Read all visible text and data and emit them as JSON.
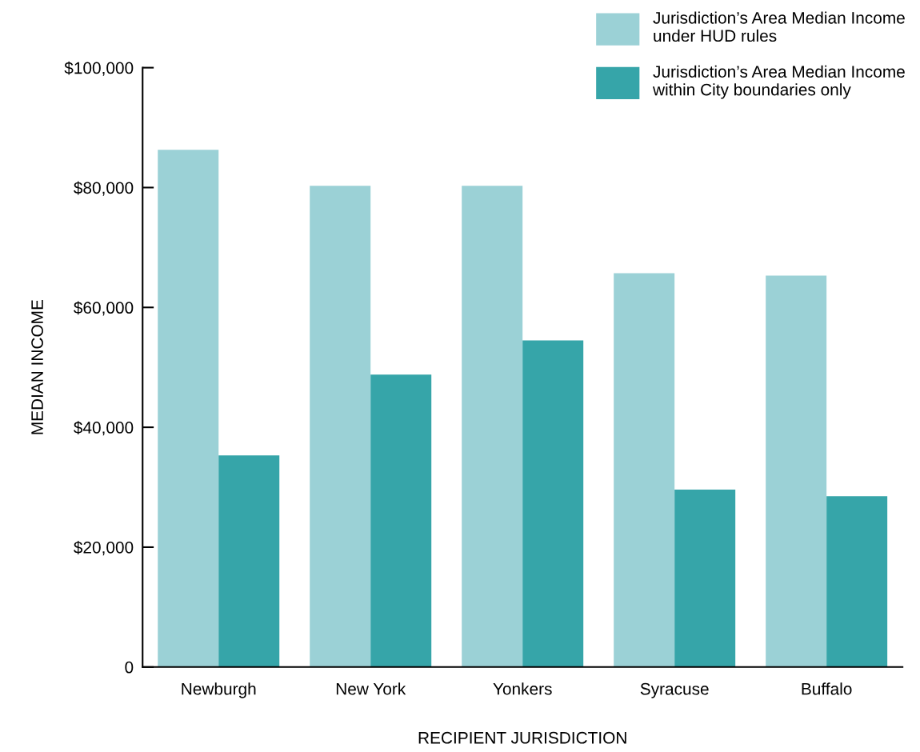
{
  "chart_data": {
    "type": "bar",
    "xlabel": "RECIPIENT JURISDICTION",
    "ylabel": "MEDIAN INCOME",
    "categories": [
      "Newburgh",
      "New York",
      "Yonkers",
      "Syracuse",
      "Buffalo"
    ],
    "series": [
      {
        "name": "Jurisdiction’s Area Median Income\nunder HUD rules",
        "color": "#9bd1d6",
        "values": [
          86300,
          80300,
          80300,
          65700,
          65300
        ]
      },
      {
        "name": "Jurisdiction’s Area Median Income\nwithin City boundaries only",
        "color": "#36a5a9",
        "values": [
          35300,
          48800,
          54500,
          29600,
          28500
        ]
      }
    ],
    "ylim": [
      0,
      100000
    ],
    "yticks": [
      0,
      {
        "value": 20000,
        "label": "$20,000"
      },
      {
        "value": 40000,
        "label": "$40,000"
      },
      {
        "value": 60000,
        "label": "$60,000"
      },
      {
        "value": 80000,
        "label": "$80,000"
      },
      {
        "value": 100000,
        "label": "$100,000"
      }
    ],
    "grid": false,
    "legend": "top right"
  }
}
